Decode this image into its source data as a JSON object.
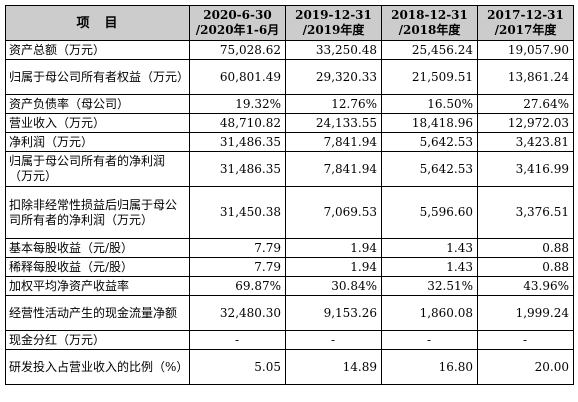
{
  "header": {
    "item": "项　目",
    "periods": [
      {
        "line1": "2020-6-30",
        "line2": "/2020年1-6月"
      },
      {
        "line1": "2019-12-31",
        "line2": "/2019年度"
      },
      {
        "line1": "2018-12-31",
        "line2": "/2018年度"
      },
      {
        "line1": "2017-12-31",
        "line2": "/2017年度"
      }
    ]
  },
  "rows": [
    {
      "label": "资产总额（万元）",
      "values": [
        "75,028.62",
        "33,250.48",
        "25,456.24",
        "19,057.90"
      ]
    },
    {
      "label": "归属于母公司所有者权益（万元）",
      "values": [
        "60,801.49",
        "29,320.33",
        "21,509.51",
        "13,861.24"
      ]
    },
    {
      "label": "资产负债率（母公司）",
      "values": [
        "19.32%",
        "12.76%",
        "16.50%",
        "27.64%"
      ]
    },
    {
      "label": "营业收入（万元）",
      "values": [
        "48,710.82",
        "24,133.55",
        "18,418.96",
        "12,972.03"
      ]
    },
    {
      "label": "净利润（万元）",
      "values": [
        "31,486.35",
        "7,841.94",
        "5,642.53",
        "3,423.81"
      ]
    },
    {
      "label": "归属于母公司所有者的净利润（万元）",
      "values": [
        "31,486.35",
        "7,841.94",
        "5,642.53",
        "3,416.99"
      ]
    },
    {
      "label": "扣除非经常性损益后归属于母公司所有者的净利润（万元）",
      "values": [
        "31,450.38",
        "7,069.53",
        "5,596.60",
        "3,376.51"
      ]
    },
    {
      "label": "基本每股收益（元/股）",
      "values": [
        "7.79",
        "1.94",
        "1.43",
        "0.88"
      ]
    },
    {
      "label": "稀释每股收益（元/股）",
      "values": [
        "7.79",
        "1.94",
        "1.43",
        "0.88"
      ]
    },
    {
      "label": "加权平均净资产收益率",
      "values": [
        "69.87%",
        "30.84%",
        "32.51%",
        "43.96%"
      ]
    },
    {
      "label": "经营性活动产生的现金流量净额",
      "values": [
        "32,480.30",
        "9,153.26",
        "1,860.08",
        "1,999.24"
      ]
    },
    {
      "label": "现金分红（万元）",
      "values": [
        "-",
        "-",
        "-",
        "-"
      ]
    },
    {
      "label": "研发投入占营业收入的比例（%）",
      "values": [
        "5.05",
        "14.89",
        "16.80",
        "20.00"
      ]
    }
  ]
}
